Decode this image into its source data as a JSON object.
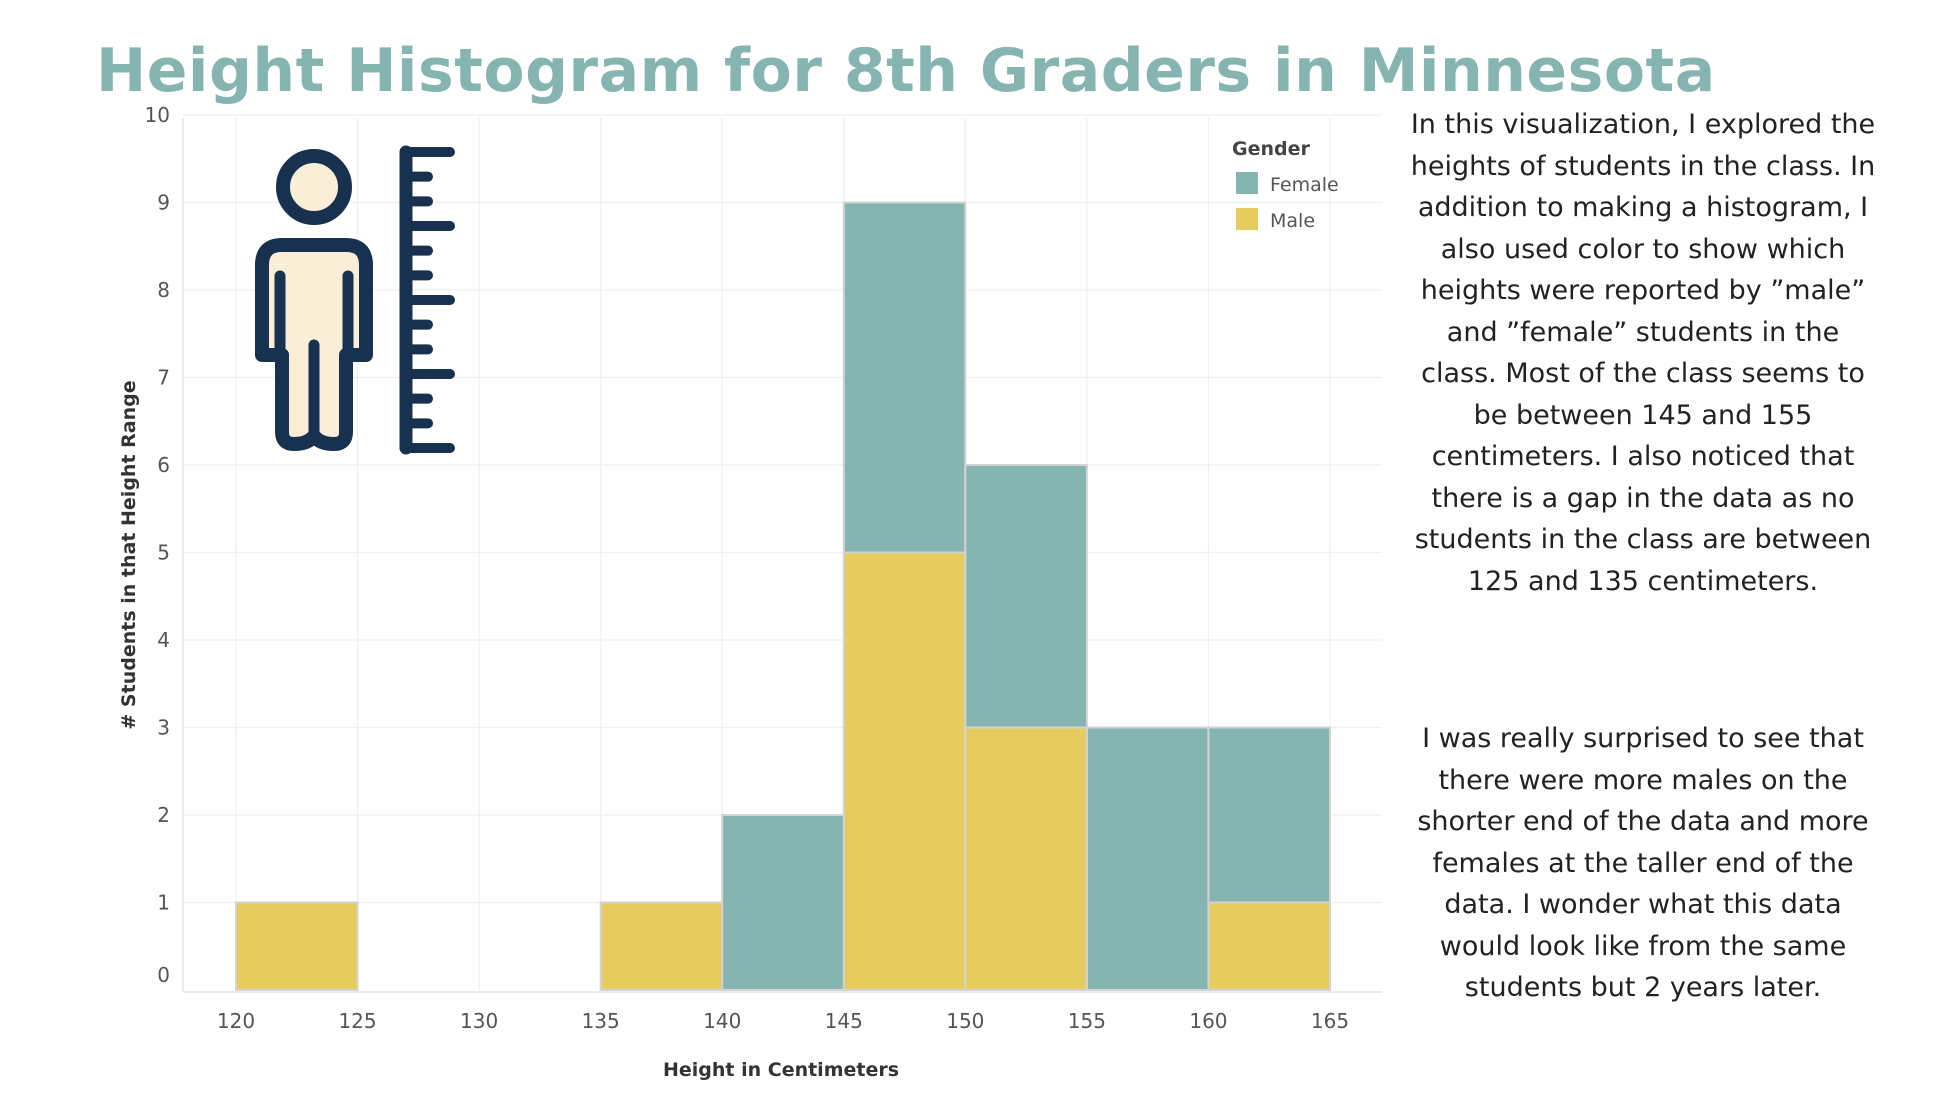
{
  "title": "Height Histogram for 8th Graders in Minnesota",
  "description": {
    "paragraph1": "In this visualization, I explored the heights of students in the class. In addition to making a histogram, I also used color to show which heights were reported by ”male” and ”female” students in the class. Most of the class seems to be between 145 and 155 centimeters. I also noticed that there is a gap in the data as no students in the class are between 125 and 135 centimeters.",
    "paragraph2": "I was really surprised to see that there were more males on the shorter end of the data and more females at the taller end of the data. I wonder what this data would look like from the same students but 2 years later."
  },
  "icon": "person-with-height-ruler-icon",
  "colors": {
    "title": "#86b5b1",
    "female": "#86b5b1",
    "male": "#e6cb5e",
    "icon_outline": "#17314f",
    "icon_fill": "#fbeed9"
  },
  "chart_data": {
    "type": "bar",
    "stacked": true,
    "title": "Height Histogram for 8th Graders in Minnesota",
    "xlabel": "Height in Centimeters",
    "ylabel": "# Students in that Height Range",
    "bin_edges": [
      120,
      125,
      130,
      135,
      140,
      145,
      150,
      155,
      160,
      165
    ],
    "x_ticks": [
      "120",
      "125",
      "130",
      "135",
      "140",
      "145",
      "150",
      "155",
      "160",
      "165"
    ],
    "y_ticks": [
      "0",
      "1",
      "2",
      "3",
      "4",
      "5",
      "6",
      "7",
      "8",
      "9",
      "10"
    ],
    "ylim": [
      0,
      10
    ],
    "xlim": [
      120,
      165
    ],
    "legend": {
      "title": "Gender",
      "position": "top-right"
    },
    "series": [
      {
        "name": "Male",
        "color": "#e6cb5e",
        "values": [
          1,
          0,
          0,
          1,
          0,
          5,
          3,
          0,
          1
        ]
      },
      {
        "name": "Female",
        "color": "#86b5b1",
        "values": [
          0,
          0,
          0,
          0,
          2,
          4,
          3,
          3,
          2
        ]
      }
    ],
    "legend_order": [
      "Female",
      "Male"
    ],
    "grid": true
  }
}
